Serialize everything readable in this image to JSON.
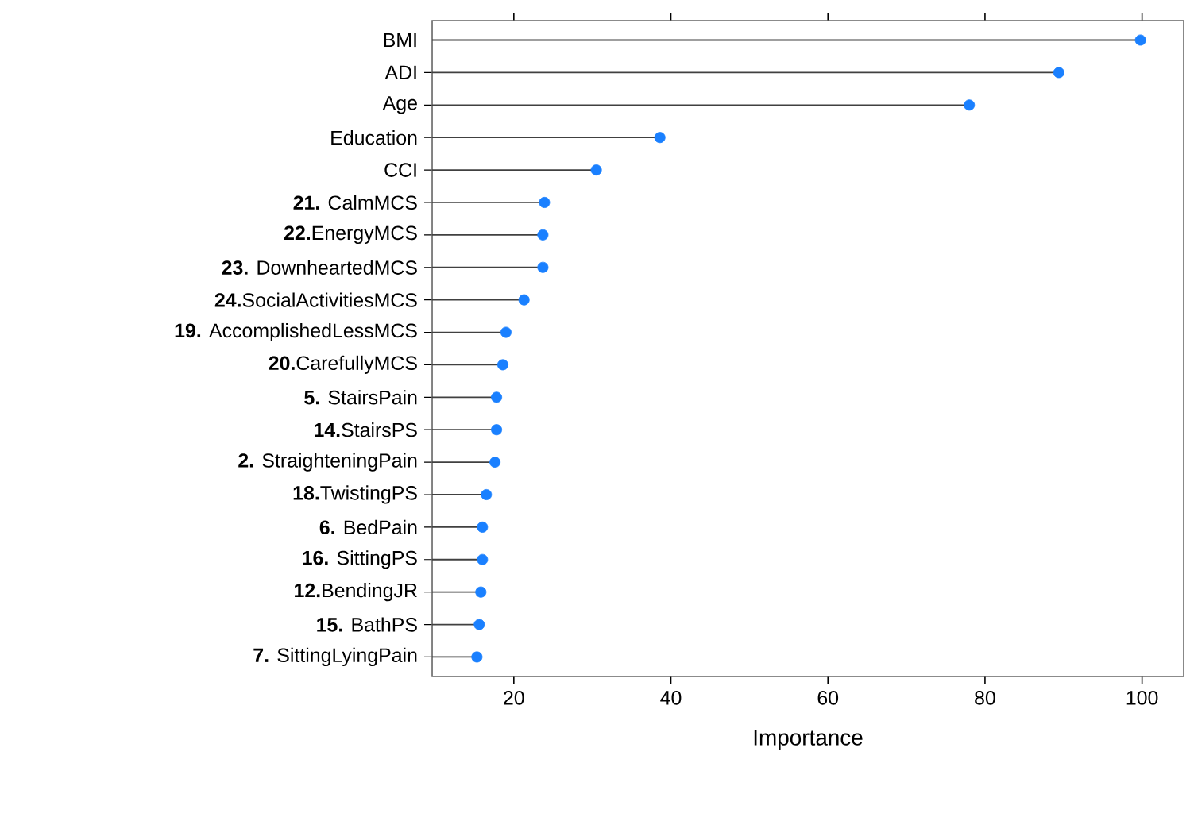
{
  "chart_data": {
    "type": "lollipop",
    "orientation": "horizontal",
    "xlabel": "Importance",
    "categories": [
      "BMI",
      "ADI",
      "Age",
      "Education",
      "CCI",
      "**21.** CalmMCS",
      "**22.**EnergyMCS",
      "**23.** DownheartedMCS",
      "**24.**SocialActivitiesMCS",
      "**19.** AccomplishedLessMCS",
      "**20.**CarefullyMCS",
      "**5.** StairsPain",
      "**14.**StairsPS",
      "**2.** StraighteningPain",
      "**18.**TwistingPS",
      "**6.** BedPain",
      "**16.** SittingPS",
      "**12.**BendingJR",
      "**15.** BathPS",
      "**7.** SittingLyingPain"
    ],
    "values": [
      99.8,
      89.4,
      78.0,
      38.6,
      30.5,
      23.9,
      23.7,
      23.7,
      21.3,
      19.0,
      18.6,
      17.8,
      17.8,
      17.6,
      16.5,
      16.0,
      16.0,
      15.8,
      15.6,
      15.3
    ],
    "color": "#1a80ff",
    "marker": "circle",
    "xlim": [
      9.6,
      105.3
    ],
    "xticks": [
      20,
      40,
      60,
      80,
      100
    ]
  }
}
